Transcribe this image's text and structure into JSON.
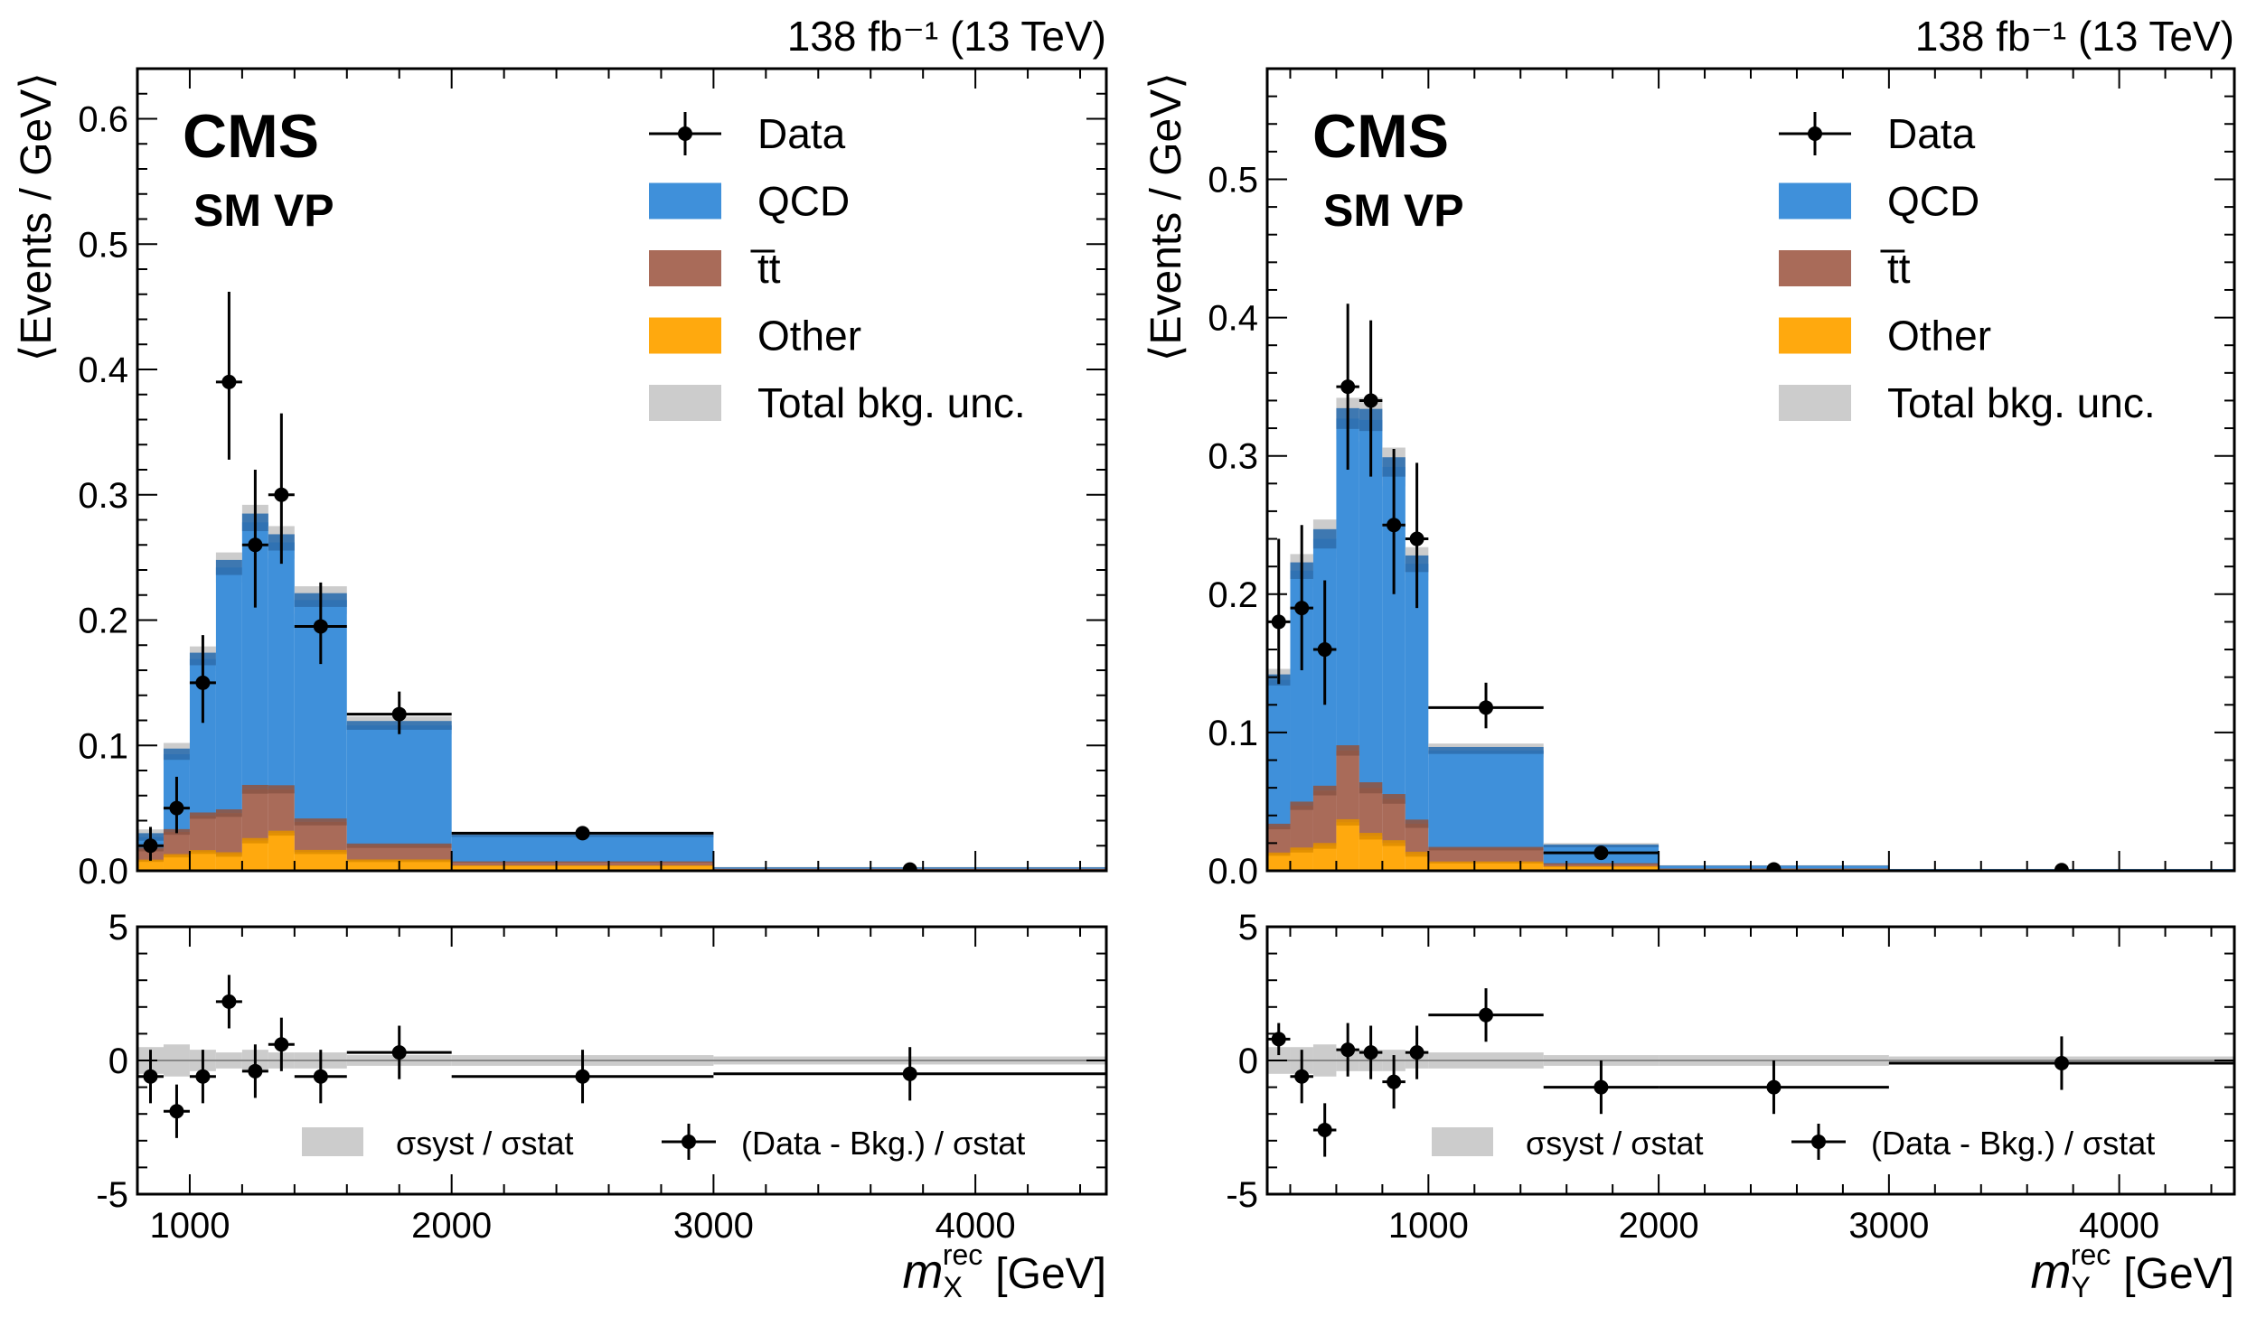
{
  "chart_data": [
    {
      "type": "bar",
      "panel": "left",
      "lumi_label": "138 fb⁻¹ (13 TeV)",
      "experiment_label": "CMS",
      "category_label": "SM VP",
      "xlabel_main": "m",
      "xlabel_sup": "rec",
      "xlabel_sub": "X",
      "xlabel_unit": "[GeV]",
      "ylabel": "⟨Events / GeV⟩",
      "xlim": [
        800,
        4500
      ],
      "ylim": [
        0,
        0.64
      ],
      "pull_ylim": [
        -5,
        5
      ],
      "x_ticks": [
        1000,
        2000,
        3000,
        4000
      ],
      "x_tick_labels": [
        "1000",
        "2000",
        "3000",
        "4000"
      ],
      "y_ticks": [
        0,
        0.1,
        0.2,
        0.3,
        0.4,
        0.5,
        0.6
      ],
      "y_tick_labels": [
        "0.0",
        "0.1",
        "0.2",
        "0.3",
        "0.4",
        "0.5",
        "0.6"
      ],
      "pull_y_ticks": [
        -5,
        0,
        5
      ],
      "pull_y_tick_labels": [
        "-5",
        "0",
        "5"
      ],
      "legend": {
        "placement": "top-right",
        "entries": [
          {
            "label": "Data",
            "kind": "marker"
          },
          {
            "label": "QCD",
            "kind": "fill",
            "color": "#3f90da"
          },
          {
            "label": "t̅t",
            "kind": "fill",
            "color": "#a96b59"
          },
          {
            "label": "Other",
            "kind": "fill",
            "color": "#ffa90e"
          },
          {
            "label": "Total bkg. unc.",
            "kind": "fill",
            "color": "#cccccc"
          }
        ]
      },
      "pull_legend": [
        {
          "label": "σsyst / σstat",
          "kind": "fill"
        },
        {
          "label": "(Data - Bkg.) / σstat",
          "kind": "marker"
        }
      ],
      "bins": [
        800,
        900,
        1000,
        1100,
        1200,
        1300,
        1400,
        1600,
        2000,
        3000,
        4500
      ],
      "stack": {
        "other": [
          0.008,
          0.012,
          0.015,
          0.013,
          0.024,
          0.03,
          0.015,
          0.008,
          0.004,
          0.001
        ],
        "ttbar": [
          0.009,
          0.019,
          0.029,
          0.033,
          0.041,
          0.035,
          0.024,
          0.012,
          0.003,
          0.0005
        ],
        "qcd": [
          0.01,
          0.062,
          0.125,
          0.196,
          0.213,
          0.197,
          0.177,
          0.096,
          0.021,
          0.001
        ]
      },
      "band_half_width": [
        0.006,
        0.009,
        0.01,
        0.012,
        0.014,
        0.013,
        0.011,
        0.007,
        0.002,
        0.0005
      ],
      "data_points": [
        {
          "x": 850,
          "y": 0.02,
          "xerr": [
            50,
            50
          ],
          "yerr": [
            0.012,
            0.015
          ]
        },
        {
          "x": 950,
          "y": 0.05,
          "xerr": [
            50,
            50
          ],
          "yerr": [
            0.02,
            0.025
          ]
        },
        {
          "x": 1050,
          "y": 0.15,
          "xerr": [
            50,
            50
          ],
          "yerr": [
            0.032,
            0.038
          ]
        },
        {
          "x": 1150,
          "y": 0.39,
          "xerr": [
            50,
            50
          ],
          "yerr": [
            0.062,
            0.072
          ]
        },
        {
          "x": 1250,
          "y": 0.26,
          "xerr": [
            50,
            50
          ],
          "yerr": [
            0.05,
            0.06
          ]
        },
        {
          "x": 1350,
          "y": 0.3,
          "xerr": [
            50,
            50
          ],
          "yerr": [
            0.055,
            0.065
          ]
        },
        {
          "x": 1500,
          "y": 0.195,
          "xerr": [
            100,
            100
          ],
          "yerr": [
            0.03,
            0.035
          ]
        },
        {
          "x": 1800,
          "y": 0.125,
          "xerr": [
            200,
            200
          ],
          "yerr": [
            0.016,
            0.018
          ]
        },
        {
          "x": 2500,
          "y": 0.03,
          "xerr": [
            500,
            500
          ],
          "yerr": [
            0.004,
            0.004
          ]
        },
        {
          "x": 3750,
          "y": 0.001,
          "xerr": [
            0,
            0
          ],
          "yerr": [
            0,
            0
          ]
        }
      ],
      "pull_band_half_width": [
        0.5,
        0.6,
        0.4,
        0.3,
        0.4,
        0.3,
        0.3,
        0.2,
        0.2,
        0.15
      ],
      "pull_points": [
        {
          "x": 850,
          "y": -0.6,
          "xerr": [
            50,
            50
          ],
          "yerr": [
            1,
            1
          ]
        },
        {
          "x": 950,
          "y": -1.9,
          "xerr": [
            50,
            50
          ],
          "yerr": [
            1,
            1
          ]
        },
        {
          "x": 1050,
          "y": -0.6,
          "xerr": [
            50,
            50
          ],
          "yerr": [
            1,
            1
          ]
        },
        {
          "x": 1150,
          "y": 2.2,
          "xerr": [
            50,
            50
          ],
          "yerr": [
            1,
            1
          ]
        },
        {
          "x": 1250,
          "y": -0.4,
          "xerr": [
            50,
            50
          ],
          "yerr": [
            1,
            1
          ]
        },
        {
          "x": 1350,
          "y": 0.6,
          "xerr": [
            50,
            50
          ],
          "yerr": [
            1,
            1
          ]
        },
        {
          "x": 1500,
          "y": -0.6,
          "xerr": [
            100,
            100
          ],
          "yerr": [
            1,
            1
          ]
        },
        {
          "x": 1800,
          "y": 0.3,
          "xerr": [
            200,
            200
          ],
          "yerr": [
            1,
            1
          ]
        },
        {
          "x": 2500,
          "y": -0.6,
          "xerr": [
            500,
            500
          ],
          "yerr": [
            1,
            1
          ]
        },
        {
          "x": 3750,
          "y": -0.5,
          "xerr": [
            750,
            750
          ],
          "yerr": [
            1,
            1
          ]
        }
      ]
    },
    {
      "type": "bar",
      "panel": "right",
      "lumi_label": "138 fb⁻¹ (13 TeV)",
      "experiment_label": "CMS",
      "category_label": "SM VP",
      "xlabel_main": "m",
      "xlabel_sup": "rec",
      "xlabel_sub": "Y",
      "xlabel_unit": "[GeV]",
      "ylabel": "⟨Events / GeV⟩",
      "xlim": [
        300,
        4500
      ],
      "ylim": [
        0,
        0.58
      ],
      "pull_ylim": [
        -5,
        5
      ],
      "x_ticks": [
        1000,
        2000,
        3000,
        4000
      ],
      "x_tick_labels": [
        "1000",
        "2000",
        "3000",
        "4000"
      ],
      "y_ticks": [
        0,
        0.1,
        0.2,
        0.3,
        0.4,
        0.5
      ],
      "y_tick_labels": [
        "0.0",
        "0.1",
        "0.2",
        "0.3",
        "0.4",
        "0.5"
      ],
      "pull_y_ticks": [
        -5,
        0,
        5
      ],
      "pull_y_tick_labels": [
        "-5",
        "0",
        "5"
      ],
      "legend": {
        "placement": "top-right",
        "entries": [
          {
            "label": "Data",
            "kind": "marker"
          },
          {
            "label": "QCD",
            "kind": "fill",
            "color": "#3f90da"
          },
          {
            "label": "t̅t",
            "kind": "fill",
            "color": "#a96b59"
          },
          {
            "label": "Other",
            "kind": "fill",
            "color": "#ffa90e"
          },
          {
            "label": "Total bkg. unc.",
            "kind": "fill",
            "color": "#cccccc"
          }
        ]
      },
      "pull_legend": [
        {
          "label": "σsyst / σstat",
          "kind": "fill"
        },
        {
          "label": "(Data - Bkg.) / σstat",
          "kind": "marker"
        }
      ],
      "bins": [
        300,
        400,
        500,
        600,
        700,
        800,
        900,
        1000,
        1500,
        2000,
        3000,
        4500
      ],
      "stack": {
        "other": [
          0.012,
          0.015,
          0.018,
          0.035,
          0.025,
          0.02,
          0.012,
          0.006,
          0.003,
          0.001,
          0.0005
        ],
        "ttbar": [
          0.02,
          0.032,
          0.04,
          0.052,
          0.035,
          0.032,
          0.022,
          0.01,
          0.002,
          0.0005,
          0.0002
        ],
        "qcd": [
          0.106,
          0.17,
          0.182,
          0.24,
          0.266,
          0.24,
          0.188,
          0.071,
          0.013,
          0.002,
          0.0005
        ]
      },
      "band_half_width": [
        0.008,
        0.012,
        0.014,
        0.015,
        0.016,
        0.014,
        0.012,
        0.005,
        0.002,
        0.0005,
        0.0002
      ],
      "data_points": [
        {
          "x": 350,
          "y": 0.18,
          "xerr": [
            50,
            50
          ],
          "yerr": [
            0.045,
            0.06
          ]
        },
        {
          "x": 450,
          "y": 0.19,
          "xerr": [
            50,
            50
          ],
          "yerr": [
            0.045,
            0.06
          ]
        },
        {
          "x": 550,
          "y": 0.16,
          "xerr": [
            50,
            50
          ],
          "yerr": [
            0.04,
            0.05
          ]
        },
        {
          "x": 650,
          "y": 0.35,
          "xerr": [
            50,
            50
          ],
          "yerr": [
            0.06,
            0.06
          ]
        },
        {
          "x": 750,
          "y": 0.34,
          "xerr": [
            50,
            50
          ],
          "yerr": [
            0.055,
            0.058
          ]
        },
        {
          "x": 850,
          "y": 0.25,
          "xerr": [
            50,
            50
          ],
          "yerr": [
            0.05,
            0.055
          ]
        },
        {
          "x": 950,
          "y": 0.24,
          "xerr": [
            50,
            50
          ],
          "yerr": [
            0.05,
            0.055
          ]
        },
        {
          "x": 1250,
          "y": 0.118,
          "xerr": [
            250,
            250
          ],
          "yerr": [
            0.015,
            0.018
          ]
        },
        {
          "x": 1750,
          "y": 0.013,
          "xerr": [
            250,
            250
          ],
          "yerr": [
            0.004,
            0.004
          ]
        },
        {
          "x": 2500,
          "y": 0.001,
          "xerr": [
            0,
            0
          ],
          "yerr": [
            0,
            0
          ]
        },
        {
          "x": 3750,
          "y": 0.0005,
          "xerr": [
            0,
            0
          ],
          "yerr": [
            0,
            0
          ]
        }
      ],
      "pull_band_half_width": [
        0.5,
        0.5,
        0.6,
        0.4,
        0.4,
        0.4,
        0.3,
        0.3,
        0.2,
        0.2,
        0.15
      ],
      "pull_points": [
        {
          "x": 350,
          "y": 0.8,
          "xerr": [
            50,
            50
          ],
          "yerr": [
            0.6,
            0.6
          ]
        },
        {
          "x": 450,
          "y": -0.6,
          "xerr": [
            50,
            50
          ],
          "yerr": [
            1,
            1
          ]
        },
        {
          "x": 550,
          "y": -2.6,
          "xerr": [
            50,
            50
          ],
          "yerr": [
            1,
            1
          ]
        },
        {
          "x": 650,
          "y": 0.4,
          "xerr": [
            50,
            50
          ],
          "yerr": [
            1,
            1
          ]
        },
        {
          "x": 750,
          "y": 0.3,
          "xerr": [
            50,
            50
          ],
          "yerr": [
            1,
            1
          ]
        },
        {
          "x": 850,
          "y": -0.8,
          "xerr": [
            50,
            50
          ],
          "yerr": [
            1,
            1
          ]
        },
        {
          "x": 950,
          "y": 0.3,
          "xerr": [
            50,
            50
          ],
          "yerr": [
            1,
            1
          ]
        },
        {
          "x": 1250,
          "y": 1.7,
          "xerr": [
            250,
            250
          ],
          "yerr": [
            1,
            1
          ]
        },
        {
          "x": 1750,
          "y": -1.0,
          "xerr": [
            250,
            250
          ],
          "yerr": [
            1,
            1
          ]
        },
        {
          "x": 2500,
          "y": -1.0,
          "xerr": [
            500,
            500
          ],
          "yerr": [
            1,
            1
          ]
        },
        {
          "x": 3750,
          "y": -0.1,
          "xerr": [
            750,
            750
          ],
          "yerr": [
            1,
            1
          ]
        }
      ]
    }
  ]
}
